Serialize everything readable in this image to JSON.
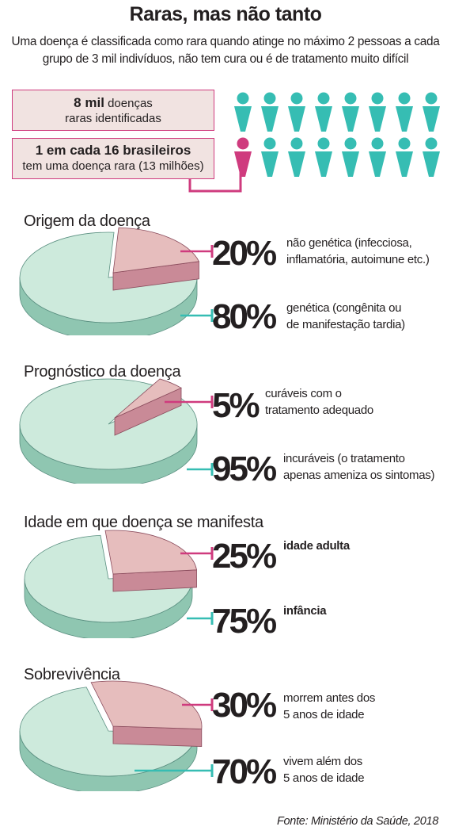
{
  "header": {
    "title": "Raras, mas não tanto",
    "subtitle": "Uma doença é classificada como rara quando atinge no máximo 2 pessoas a cada grupo de 3 mil indivíduos, não tem cura ou é de tratamento muito difícil"
  },
  "boxes": [
    {
      "bold": "8 mil",
      "text1": " doenças",
      "text2": "raras identificadas"
    },
    {
      "bold": "1 em cada 16 brasileiros",
      "text1": "",
      "text2": "tem uma doença rara (13 milhões)"
    }
  ],
  "colors": {
    "pink": "#cf3b7e",
    "teal": "#36bdb3",
    "pie_green": "#cdeadc",
    "pie_green_side": "#8fc6b1",
    "pie_pink": "#e6bdbd",
    "pie_pink_side": "#c98a97"
  },
  "pictogram": {
    "total": 16,
    "highlighted": 1,
    "icon": "person-icon"
  },
  "chart_data": [
    {
      "type": "pie",
      "title": "Origem da doença",
      "slices": [
        {
          "label": "não genética (infecciosa, inflamatória, autoimune etc.)",
          "label_lines": [
            "não genética (infecciosa,",
            "inflamatória, autoimune etc.)"
          ],
          "value": 20,
          "display": "20%"
        },
        {
          "label": "genética (congênita ou de manifestação tardia)",
          "label_lines": [
            "genética (congênita ou",
            "de manifestação tardia)"
          ],
          "value": 80,
          "display": "80%"
        }
      ]
    },
    {
      "type": "pie",
      "title": "Prognóstico da doença",
      "slices": [
        {
          "label": "curáveis com o tratamento adequado",
          "label_lines": [
            "curáveis com o",
            "tratamento adequado"
          ],
          "value": 5,
          "display": "5%"
        },
        {
          "label": "incuráveis (o tratamento apenas ameniza os sintomas)",
          "label_lines": [
            "incuráveis (o tratamento",
            "apenas ameniza os sintomas)"
          ],
          "value": 95,
          "display": "95%"
        }
      ]
    },
    {
      "type": "pie",
      "title": "Idade em que doença se manifesta",
      "slices": [
        {
          "label": "idade adulta",
          "label_lines": [
            "idade adulta"
          ],
          "value": 25,
          "display": "25%"
        },
        {
          "label": "infância",
          "label_lines": [
            "infância"
          ],
          "value": 75,
          "display": "75%"
        }
      ]
    },
    {
      "type": "pie",
      "title": "Sobrevivência",
      "slices": [
        {
          "label": "morrem antes dos 5 anos de idade",
          "label_lines": [
            "morrem antes dos",
            "5 anos de idade"
          ],
          "value": 30,
          "display": "30%"
        },
        {
          "label": "vivem além dos 5 anos de idade",
          "label_lines": [
            "vivem além dos",
            "5 anos de idade"
          ],
          "value": 70,
          "display": "70%"
        }
      ]
    }
  ],
  "source": "Fonte: Ministério da Saúde, 2018"
}
